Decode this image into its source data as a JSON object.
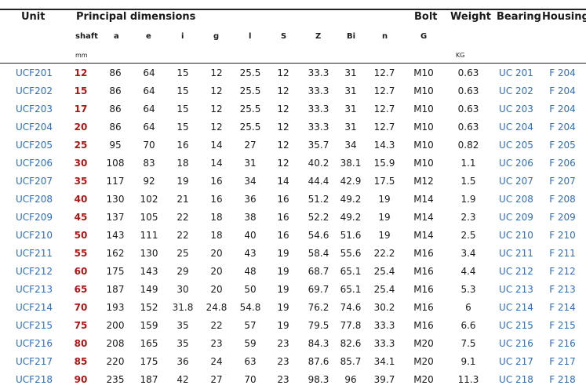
{
  "headers": {
    "unit": "Unit",
    "principal_dimensions": "Principal dimensions",
    "bolt": "Bolt",
    "weight": "Weight",
    "bearing": "Bearing",
    "housing": "Housing"
  },
  "subheaders": {
    "shaft": "shaft",
    "a": "a",
    "e": "e",
    "i": "i",
    "g": "g",
    "l": "l",
    "s": "S",
    "z": "Z",
    "bi": "Bi",
    "n": "n",
    "bolt_g": "G"
  },
  "units": {
    "mm": "mm",
    "kg": "KG"
  },
  "rows": [
    {
      "unit": "UCF201",
      "shaft": "12",
      "a": "86",
      "e": "64",
      "i": "15",
      "g": "12",
      "l": "25.5",
      "s": "12",
      "z": "33.3",
      "bi": "31",
      "n": "12.7",
      "bolt": "M10",
      "weight": "0.63",
      "bearing": "UC 201",
      "housing": "F 204"
    },
    {
      "unit": "UCF202",
      "shaft": "15",
      "a": "86",
      "e": "64",
      "i": "15",
      "g": "12",
      "l": "25.5",
      "s": "12",
      "z": "33.3",
      "bi": "31",
      "n": "12.7",
      "bolt": "M10",
      "weight": "0.63",
      "bearing": "UC 202",
      "housing": "F 204"
    },
    {
      "unit": "UCF203",
      "shaft": "17",
      "a": "86",
      "e": "64",
      "i": "15",
      "g": "12",
      "l": "25.5",
      "s": "12",
      "z": "33.3",
      "bi": "31",
      "n": "12.7",
      "bolt": "M10",
      "weight": "0.63",
      "bearing": "UC 203",
      "housing": "F 204"
    },
    {
      "unit": "UCF204",
      "shaft": "20",
      "a": "86",
      "e": "64",
      "i": "15",
      "g": "12",
      "l": "25.5",
      "s": "12",
      "z": "33.3",
      "bi": "31",
      "n": "12.7",
      "bolt": "M10",
      "weight": "0.63",
      "bearing": "UC 204",
      "housing": "F 204"
    },
    {
      "unit": "UCF205",
      "shaft": "25",
      "a": "95",
      "e": "70",
      "i": "16",
      "g": "14",
      "l": "27",
      "s": "12",
      "z": "35.7",
      "bi": "34",
      "n": "14.3",
      "bolt": "M10",
      "weight": "0.82",
      "bearing": "UC 205",
      "housing": "F 205"
    },
    {
      "unit": "UCF206",
      "shaft": "30",
      "a": "108",
      "e": "83",
      "i": "18",
      "g": "14",
      "l": "31",
      "s": "12",
      "z": "40.2",
      "bi": "38.1",
      "n": "15.9",
      "bolt": "M10",
      "weight": "1.1",
      "bearing": "UC 206",
      "housing": "F 206"
    },
    {
      "unit": "UCF207",
      "shaft": "35",
      "a": "117",
      "e": "92",
      "i": "19",
      "g": "16",
      "l": "34",
      "s": "14",
      "z": "44.4",
      "bi": "42.9",
      "n": "17.5",
      "bolt": "M12",
      "weight": "1.5",
      "bearing": "UC 207",
      "housing": "F 207"
    },
    {
      "unit": "UCF208",
      "shaft": "40",
      "a": "130",
      "e": "102",
      "i": "21",
      "g": "16",
      "l": "36",
      "s": "16",
      "z": "51.2",
      "bi": "49.2",
      "n": "19",
      "bolt": "M14",
      "weight": "1.9",
      "bearing": "UC 208",
      "housing": "F 208"
    },
    {
      "unit": "UCF209",
      "shaft": "45",
      "a": "137",
      "e": "105",
      "i": "22",
      "g": "18",
      "l": "38",
      "s": "16",
      "z": "52.2",
      "bi": "49.2",
      "n": "19",
      "bolt": "M14",
      "weight": "2.3",
      "bearing": "UC 209",
      "housing": "F 209"
    },
    {
      "unit": "UCF210",
      "shaft": "50",
      "a": "143",
      "e": "111",
      "i": "22",
      "g": "18",
      "l": "40",
      "s": "16",
      "z": "54.6",
      "bi": "51.6",
      "n": "19",
      "bolt": "M14",
      "weight": "2.5",
      "bearing": "UC 210",
      "housing": "F 210"
    },
    {
      "unit": "UCF211",
      "shaft": "55",
      "a": "162",
      "e": "130",
      "i": "25",
      "g": "20",
      "l": "43",
      "s": "19",
      "z": "58.4",
      "bi": "55.6",
      "n": "22.2",
      "bolt": "M16",
      "weight": "3.4",
      "bearing": "UC 211",
      "housing": "F 211"
    },
    {
      "unit": "UCF212",
      "shaft": "60",
      "a": "175",
      "e": "143",
      "i": "29",
      "g": "20",
      "l": "48",
      "s": "19",
      "z": "68.7",
      "bi": "65.1",
      "n": "25.4",
      "bolt": "M16",
      "weight": "4.4",
      "bearing": "UC 212",
      "housing": "F 212"
    },
    {
      "unit": "UCF213",
      "shaft": "65",
      "a": "187",
      "e": "149",
      "i": "30",
      "g": "20",
      "l": "50",
      "s": "19",
      "z": "69.7",
      "bi": "65.1",
      "n": "25.4",
      "bolt": "M16",
      "weight": "5.3",
      "bearing": "UC 213",
      "housing": "F 213"
    },
    {
      "unit": "UCF214",
      "shaft": "70",
      "a": "193",
      "e": "152",
      "i": "31.8",
      "g": "24.8",
      "l": "54.8",
      "s": "19",
      "z": "76.2",
      "bi": "74.6",
      "n": "30.2",
      "bolt": "M16",
      "weight": "6",
      "bearing": "UC 214",
      "housing": "F 214"
    },
    {
      "unit": "UCF215",
      "shaft": "75",
      "a": "200",
      "e": "159",
      "i": "35",
      "g": "22",
      "l": "57",
      "s": "19",
      "z": "79.5",
      "bi": "77.8",
      "n": "33.3",
      "bolt": "M16",
      "weight": "6.6",
      "bearing": "UC 215",
      "housing": "F 215"
    },
    {
      "unit": "UCF216",
      "shaft": "80",
      "a": "208",
      "e": "165",
      "i": "35",
      "g": "23",
      "l": "59",
      "s": "23",
      "z": "84.3",
      "bi": "82.6",
      "n": "33.3",
      "bolt": "M20",
      "weight": "7.5",
      "bearing": "UC 216",
      "housing": "F 216"
    },
    {
      "unit": "UCF217",
      "shaft": "85",
      "a": "220",
      "e": "175",
      "i": "36",
      "g": "24",
      "l": "63",
      "s": "23",
      "z": "87.6",
      "bi": "85.7",
      "n": "34.1",
      "bolt": "M20",
      "weight": "9.1",
      "bearing": "UC 217",
      "housing": "F 217"
    },
    {
      "unit": "UCF218",
      "shaft": "90",
      "a": "235",
      "e": "187",
      "i": "42",
      "g": "27",
      "l": "70",
      "s": "23",
      "z": "98.3",
      "bi": "96",
      "n": "39.7",
      "bolt": "M20",
      "weight": "11.3",
      "bearing": "UC 218",
      "housing": "F 218"
    }
  ]
}
